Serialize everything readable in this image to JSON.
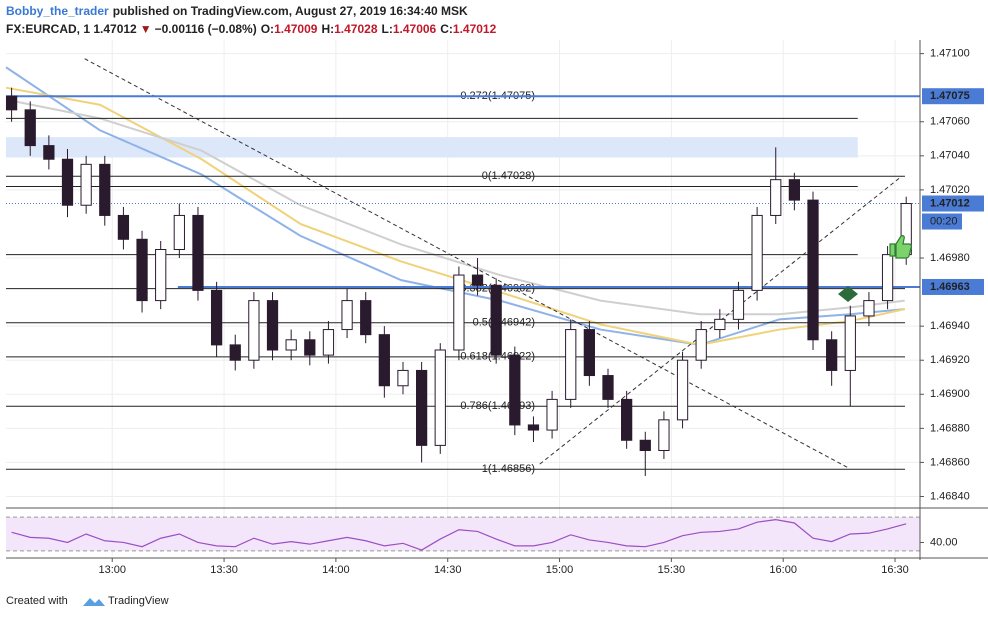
{
  "header": {
    "author": "Bobby_the_trader",
    "published": "published on TradingView.com, August 27, 2019 16:34:40 MSK",
    "symbol": "FX:EURCAD, 1",
    "price": "1.47012",
    "arrow": "▼",
    "change": "−0.00116 (−0.08%)",
    "ohlc": [
      {
        "k": "O:",
        "v": "1.47009"
      },
      {
        "k": "H:",
        "v": "1.47028"
      },
      {
        "k": "L:",
        "v": "1.47006"
      },
      {
        "k": "C:",
        "v": "1.47012"
      }
    ]
  },
  "chart_data": [
    {
      "type": "candlestick",
      "x": [
        753,
        758,
        763,
        768,
        773,
        778,
        783,
        788,
        793,
        798,
        803,
        808,
        813,
        818,
        823,
        828,
        833,
        838,
        843,
        848,
        853,
        858,
        863,
        868,
        873,
        878,
        883,
        888,
        893,
        898,
        903,
        908,
        913,
        918,
        923,
        928,
        933,
        938,
        943,
        948,
        953,
        958,
        963,
        968,
        973,
        978,
        983,
        988,
        993
      ],
      "open": [
        1.47075,
        1.47067,
        1.47046,
        1.47038,
        1.47011,
        1.47035,
        1.47005,
        1.46991,
        1.46955,
        1.46985,
        1.47005,
        1.46961,
        1.46929,
        1.4692,
        1.46955,
        1.46926,
        1.46932,
        1.46923,
        1.46938,
        1.46955,
        1.46935,
        1.46905,
        1.46914,
        1.4687,
        1.46926,
        1.4697,
        1.46964,
        1.46923,
        1.46882,
        1.46879,
        1.46897,
        1.46938,
        1.46911,
        1.46897,
        1.46873,
        1.46867,
        1.46885,
        1.4692,
        1.46938,
        1.46944,
        1.46961,
        1.47005,
        1.47026,
        1.47014,
        1.46932,
        1.46914,
        1.46946,
        1.46955,
        1.46982
      ],
      "high": [
        1.4708,
        1.47072,
        1.47052,
        1.47044,
        1.4704,
        1.4704,
        1.4701,
        1.46996,
        1.4699,
        1.47012,
        1.4701,
        1.46966,
        1.46935,
        1.4696,
        1.4696,
        1.46938,
        1.46937,
        1.46943,
        1.46962,
        1.4696,
        1.4694,
        1.46919,
        1.46919,
        1.4693,
        1.46975,
        1.4698,
        1.46968,
        1.46928,
        1.46887,
        1.46902,
        1.46944,
        1.46943,
        1.46915,
        1.46902,
        1.46878,
        1.4689,
        1.46925,
        1.46943,
        1.4695,
        1.46966,
        1.4701,
        1.47045,
        1.4703,
        1.47019,
        1.46937,
        1.46952,
        1.4696,
        1.46987,
        1.47016
      ],
      "low": [
        1.4706,
        1.4704,
        1.47032,
        1.47004,
        1.47006,
        1.46999,
        1.46985,
        1.46948,
        1.4695,
        1.4698,
        1.46955,
        1.46922,
        1.46914,
        1.46915,
        1.4692,
        1.4692,
        1.46917,
        1.46918,
        1.46933,
        1.4693,
        1.46898,
        1.469,
        1.4686,
        1.46865,
        1.4692,
        1.46958,
        1.46918,
        1.46876,
        1.46872,
        1.46874,
        1.46892,
        1.46905,
        1.46892,
        1.46868,
        1.46852,
        1.46862,
        1.4688,
        1.46915,
        1.46933,
        1.46938,
        1.46955,
        1.47,
        1.47008,
        1.46926,
        1.46905,
        1.46893,
        1.4694,
        1.4695,
        1.46976
      ],
      "close": [
        1.47067,
        1.47046,
        1.47038,
        1.47011,
        1.47035,
        1.47005,
        1.46991,
        1.46955,
        1.46985,
        1.47005,
        1.46961,
        1.46929,
        1.4692,
        1.46955,
        1.46926,
        1.46932,
        1.46923,
        1.46938,
        1.46955,
        1.46935,
        1.46905,
        1.46914,
        1.4687,
        1.46926,
        1.4697,
        1.46964,
        1.46923,
        1.46882,
        1.46879,
        1.46897,
        1.46938,
        1.46911,
        1.46897,
        1.46873,
        1.46867,
        1.46885,
        1.4692,
        1.46938,
        1.46944,
        1.46961,
        1.47005,
        1.47026,
        1.47014,
        1.46932,
        1.46914,
        1.46946,
        1.46955,
        1.46982,
        1.47012
      ],
      "up_color": "#ffffff",
      "down_color": "#2a1a2e",
      "wick_color": "#2a1a2e",
      "xlim": [
        751.5,
        996.7
      ],
      "ylim": [
        1.46835,
        1.47108
      ],
      "xticks": [
        {
          "value": 780,
          "label": "13:00"
        },
        {
          "value": 810,
          "label": "13:30"
        },
        {
          "value": 840,
          "label": "14:00"
        },
        {
          "value": 870,
          "label": "14:30"
        },
        {
          "value": 900,
          "label": "15:00"
        },
        {
          "value": 930,
          "label": "15:30"
        },
        {
          "value": 960,
          "label": "16:00"
        },
        {
          "value": 990,
          "label": "16:30"
        }
      ],
      "yticks": [
        {
          "value": 1.471,
          "label": "1.47100"
        },
        {
          "value": 1.4706,
          "label": "1.47060"
        },
        {
          "value": 1.4704,
          "label": "1.47040"
        },
        {
          "value": 1.4702,
          "label": "1.47020"
        },
        {
          "value": 1.4698,
          "label": "1.46980"
        },
        {
          "value": 1.4694,
          "label": "1.46940"
        },
        {
          "value": 1.4692,
          "label": "1.46920"
        },
        {
          "value": 1.469,
          "label": "1.46900"
        },
        {
          "value": 1.4688,
          "label": "1.46880"
        },
        {
          "value": 1.4686,
          "label": "1.46860"
        },
        {
          "value": 1.4684,
          "label": "1.46840"
        }
      ],
      "grid": true,
      "moving_averages": [
        {
          "color": "#8fb3e8",
          "x": [
            751.5,
            776.7,
            804,
            830.5,
            857.5,
            884,
            911,
            937.6,
            959,
            978,
            992.6
          ],
          "values": [
            1.47092,
            1.47055,
            1.47029,
            1.46993,
            1.46967,
            1.46955,
            1.46938,
            1.46929,
            1.46944,
            1.46947,
            1.4695
          ]
        },
        {
          "color": "#f0d27a",
          "x": [
            751.5,
            776.7,
            804,
            830.5,
            857.5,
            884,
            911,
            937.6,
            959,
            978,
            992.6
          ],
          "values": [
            1.4708,
            1.4707,
            1.47038,
            1.47,
            1.46978,
            1.4696,
            1.46941,
            1.46929,
            1.46938,
            1.46943,
            1.4695
          ]
        },
        {
          "color": "#cfcfcf",
          "x": [
            751.5,
            776.7,
            804,
            830.5,
            857.5,
            884,
            911,
            937.6,
            959,
            978,
            992.6
          ],
          "values": [
            1.47073,
            1.47062,
            1.47043,
            1.47011,
            1.46988,
            1.4697,
            1.46955,
            1.46947,
            1.46947,
            1.46951,
            1.46955
          ]
        }
      ],
      "zone": {
        "x": [
          751.5,
          980
        ],
        "y": [
          1.47039,
          1.47051
        ],
        "color": "#dce8fa"
      },
      "levels": [
        1.47062,
        1.47022,
        1.46982
      ],
      "fib": [
        {
          "value": 1.47075,
          "label": "0.272(1.47075)"
        },
        {
          "value": 1.47028,
          "label": "0(1.47028)"
        },
        {
          "value": 1.46962,
          "label": "0.382(1.46962)"
        },
        {
          "value": 1.46942,
          "label": "0.5(1.46942)"
        },
        {
          "value": 1.46922,
          "label": "0.618(1.46922)"
        },
        {
          "value": 1.46893,
          "label": "0.786(1.46893)"
        },
        {
          "value": 1.46856,
          "label": "1(1.46856)"
        }
      ],
      "trendlines": [
        {
          "x": [
            772.6,
            977.3
          ],
          "y": [
            1.47097,
            1.46857
          ]
        },
        {
          "x": [
            894.7,
            991.8
          ],
          "y": [
            1.46859,
            1.47028
          ]
        }
      ],
      "hlines": [
        {
          "value": 1.47075,
          "x0": 751.5,
          "color": "#4a7bd5"
        },
        {
          "value": 1.46963,
          "x0": 797.6,
          "color": "#4a7bd5"
        }
      ],
      "current": {
        "value": 1.47012,
        "color": "#4a7bd5"
      },
      "price_labels": [
        {
          "value": 1.47075,
          "label": "1.47075"
        },
        {
          "value": 1.47012,
          "label": "1.47012"
        },
        {
          "value": 1.46963,
          "label": "1.46963"
        }
      ],
      "countdown": "00:20"
    },
    {
      "type": "line",
      "x": [
        753,
        758,
        763,
        768,
        773,
        778,
        783,
        788,
        793,
        798,
        803,
        808,
        813,
        818,
        823,
        828,
        833,
        838,
        843,
        848,
        853,
        858,
        863,
        868,
        873,
        878,
        883,
        888,
        893,
        898,
        903,
        908,
        913,
        918,
        923,
        928,
        933,
        938,
        943,
        948,
        953,
        958,
        963,
        968,
        973,
        978,
        983,
        988,
        993
      ],
      "values": [
        52,
        46,
        45,
        40,
        50,
        42,
        40,
        35,
        45,
        50,
        40,
        36,
        35,
        45,
        38,
        41,
        38,
        42,
        46,
        42,
        36,
        39,
        31,
        44,
        55,
        53,
        44,
        36,
        36,
        40,
        49,
        43,
        40,
        36,
        35,
        40,
        48,
        52,
        53,
        56,
        64,
        67,
        63,
        45,
        41,
        50,
        51,
        56,
        62
      ],
      "color": "#9c4fc4",
      "band_fill": "#f3e6fa",
      "bands": [
        30,
        70
      ],
      "ylim": [
        24,
        76
      ],
      "yticks": [
        {
          "value": 40,
          "label": "40.00"
        }
      ]
    }
  ],
  "footer": {
    "prefix": "Created with",
    "brand": "TradingView"
  }
}
